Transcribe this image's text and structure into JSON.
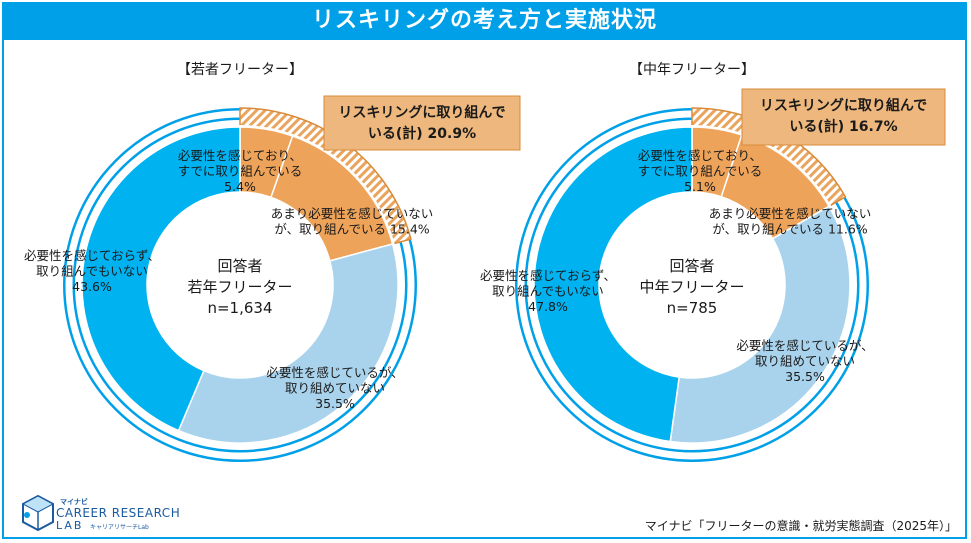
{
  "page": {
    "title": "リスキリングの考え方と実施状況",
    "source": "マイナビ「フリーターの意識・就労実態調査（2025年）」",
    "logo": {
      "brand": "マイナビ",
      "name": "CAREER RESEARCH",
      "lab": "LAB",
      "kana": "キャリアリサーチLab"
    }
  },
  "colors": {
    "accent": "#00a0e9",
    "orange": "#eda35a",
    "light_blue": "#a9d3ec",
    "callout_bg": "#edb77d",
    "callout_border": "#d98b3a"
  },
  "chart_data": [
    {
      "type": "pie",
      "title": "【若者フリーター】",
      "center_label": [
        "回答者",
        "若年フリーター",
        "n=1,634"
      ],
      "callout": [
        "リスキリングに取り組んで",
        "いる(計) 20.9%"
      ],
      "slices": [
        {
          "label": [
            "必要性を感じており、",
            "すでに取り組んでいる",
            "5.4%"
          ],
          "value": 5.4,
          "color": "#eda35a"
        },
        {
          "label": [
            "あまり必要性を感じていない",
            "が、取り組んでいる 15.4%"
          ],
          "value": 15.4,
          "color": "#eda35a"
        },
        {
          "label": [
            "必要性を感じているが、",
            "取り組めていない",
            "35.5%"
          ],
          "value": 35.5,
          "color": "#a9d3ec"
        },
        {
          "label": [
            "必要性を感じておらず、",
            "取り組んでもいない",
            "43.6%"
          ],
          "value": 43.6,
          "color": "#00b2f0"
        }
      ]
    },
    {
      "type": "pie",
      "title": "【中年フリーター】",
      "center_label": [
        "回答者",
        "中年フリーター",
        "n=785"
      ],
      "callout": [
        "リスキリングに取り組んで",
        "いる(計) 16.7%"
      ],
      "slices": [
        {
          "label": [
            "必要性を感じており、",
            "すでに取り組んでいる",
            "5.1%"
          ],
          "value": 5.1,
          "color": "#eda35a"
        },
        {
          "label": [
            "あまり必要性を感じていない",
            "が、取り組んでいる 11.6%"
          ],
          "value": 11.6,
          "color": "#eda35a"
        },
        {
          "label": [
            "必要性を感じているが、",
            "取り組めていない",
            "35.5%"
          ],
          "value": 35.5,
          "color": "#a9d3ec"
        },
        {
          "label": [
            "必要性を感じておらず、",
            "取り組んでもいない",
            "47.8%"
          ],
          "value": 47.8,
          "color": "#00b2f0"
        }
      ]
    }
  ]
}
